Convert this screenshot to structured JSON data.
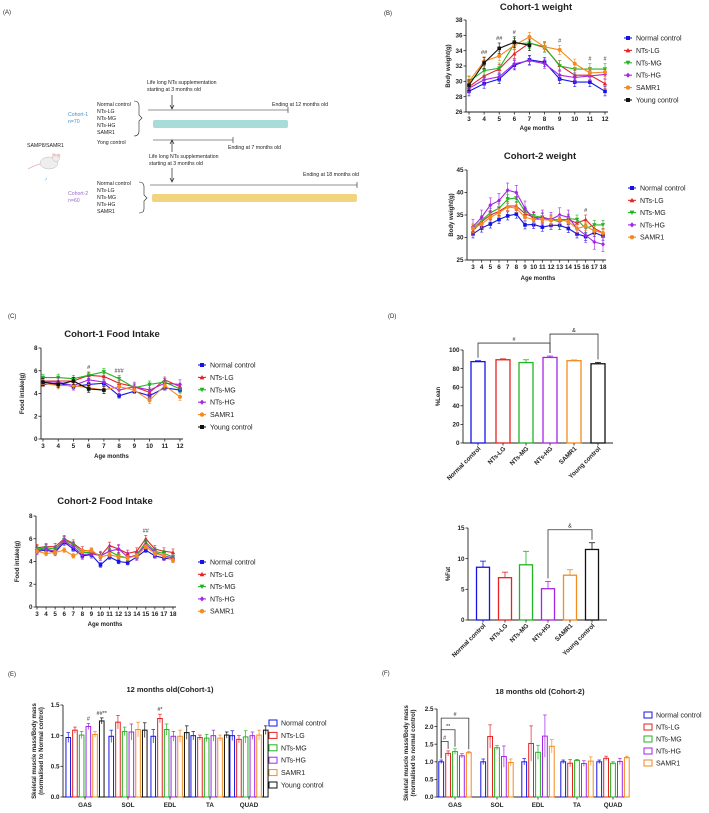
{
  "panels": [
    "(A)",
    "(B)",
    "(C)",
    "(D)",
    "(E)",
    "(F)"
  ],
  "colors": {
    "blue": "#1414e6",
    "red": "#e62222",
    "green": "#22b422",
    "purple": "#a626e6",
    "orange": "#f58a1f",
    "black": "#111111",
    "teal": "#a8dcd8",
    "tan": "#f2d37e",
    "cohort1": "#4a90c8",
    "cohort2": "#9a6ac8"
  },
  "diagram": {
    "supp_text_1": "Life long NTs supplementation",
    "supp_text_2": "starting at 3 months old",
    "cohort1_name": "Cohort-1",
    "cohort1_n": "n=70",
    "cohort2_name": "Cohort-2",
    "cohort2_n": "n=60",
    "groups": [
      "Normal control",
      "NTs-LG",
      "NTs-MG",
      "NTs-HG",
      "SAMR1"
    ],
    "young_control": "Yong control",
    "strain": "SAMP8/SAMR1",
    "male_symbol": "♂",
    "end_12": "Ending at 12 months old",
    "end_7": "Ending at 7 months old",
    "end_18": "Ending at 18 months old"
  },
  "chart_data": [
    {
      "type": "line",
      "title": "Cohort-1 weight",
      "xlabel": "Age months",
      "ylabel": "Body weight(g)",
      "x": [
        3,
        4,
        5,
        6,
        7,
        8,
        9,
        10,
        11,
        12
      ],
      "ylim": [
        26,
        38
      ],
      "yticks": [
        "26",
        "28",
        "30",
        "32",
        "34",
        "36",
        "38"
      ],
      "grid": false,
      "legend": "right",
      "series": [
        {
          "name": "Normal control",
          "color": "blue",
          "marker": "square",
          "error": 0.6,
          "values": [
            28.7,
            29.7,
            30.3,
            32.1,
            32.8,
            32.5,
            30.3,
            29.9,
            29.9,
            28.7
          ]
        },
        {
          "name": "NTs-LG",
          "color": "red",
          "marker": "triangle",
          "error": 0.6,
          "values": [
            29.3,
            30.7,
            31.6,
            33.6,
            35.0,
            34.4,
            32.1,
            30.8,
            30.8,
            29.7
          ]
        },
        {
          "name": "NTs-MG",
          "color": "green",
          "marker": "triangle-down",
          "error": 0.7,
          "values": [
            30.0,
            31.4,
            31.7,
            34.9,
            35.0,
            34.5,
            32.0,
            31.6,
            31.6,
            31.6
          ]
        },
        {
          "name": "NTs-HG",
          "color": "purple",
          "marker": "diamond",
          "error": 0.6,
          "values": [
            29.1,
            30.2,
            30.6,
            32.3,
            32.7,
            32.3,
            30.8,
            30.5,
            30.7,
            30.9
          ]
        },
        {
          "name": "SAMR1",
          "color": "orange",
          "marker": "circle",
          "error": 0.6,
          "values": [
            30.0,
            32.6,
            33.3,
            34.7,
            35.8,
            34.5,
            34.1,
            32.3,
            31.1,
            31.2
          ]
        },
        {
          "name": "Young control",
          "color": "black",
          "marker": "square",
          "error": 0.7,
          "values": [
            29.5,
            32.4,
            34.3,
            35.1,
            34.7,
            null,
            null,
            null,
            null,
            null
          ]
        }
      ],
      "annotations": [
        {
          "x": 4,
          "label": "##"
        },
        {
          "x": 5,
          "label": "##"
        },
        {
          "x": 6,
          "label": "#"
        },
        {
          "x": 9,
          "label": "#"
        },
        {
          "x": 11,
          "label": "#"
        },
        {
          "x": 12,
          "label": "#"
        }
      ]
    },
    {
      "type": "line",
      "title": "Cohort-2 weight",
      "xlabel": "Age months",
      "ylabel": "Body weight(g)",
      "x": [
        3,
        4,
        5,
        6,
        7,
        8,
        9,
        10,
        11,
        12,
        13,
        14,
        15,
        16,
        17,
        18
      ],
      "ylim": [
        25,
        45
      ],
      "yticks": [
        "25",
        "30",
        "35",
        "40",
        "45"
      ],
      "grid": false,
      "legend": "right",
      "series": [
        {
          "name": "Normal control",
          "color": "blue",
          "marker": "square",
          "error": 0.9,
          "values": [
            30.8,
            32.1,
            33.0,
            34.0,
            34.8,
            35.2,
            32.8,
            32.9,
            32.3,
            32.7,
            32.7,
            32.0,
            30.8,
            30.2,
            31.1,
            30.3
          ]
        },
        {
          "name": "NTs-LG",
          "color": "red",
          "marker": "triangle",
          "error": 1.0,
          "values": [
            31.5,
            33.5,
            35.0,
            35.8,
            37.0,
            37.0,
            35.3,
            34.5,
            34.3,
            34.0,
            34.0,
            34.0,
            33.2,
            34.0,
            32.0,
            31.0
          ]
        },
        {
          "name": "NTs-MG",
          "color": "green",
          "marker": "triangle-down",
          "error": 1.0,
          "values": [
            32.0,
            33.8,
            35.5,
            36.5,
            38.5,
            38.8,
            35.8,
            34.8,
            34.5,
            34.0,
            33.5,
            34.2,
            34.0,
            32.0,
            32.8,
            32.8
          ]
        },
        {
          "name": "NTs-HG",
          "color": "purple",
          "marker": "diamond",
          "error": 1.6,
          "values": [
            32.4,
            34.5,
            37.2,
            38.2,
            40.5,
            40.0,
            36.5,
            34.0,
            34.5,
            34.0,
            35.0,
            34.5,
            32.0,
            30.5,
            29.0,
            28.5
          ]
        },
        {
          "name": "SAMR1",
          "color": "orange",
          "marker": "circle",
          "error": 0.9,
          "values": [
            32.0,
            33.0,
            34.5,
            35.5,
            36.8,
            36.5,
            34.5,
            34.0,
            34.0,
            33.8,
            34.0,
            33.5,
            32.0,
            32.5,
            31.5,
            31.0
          ]
        }
      ],
      "annotations": [
        {
          "x": 16,
          "label": "#"
        }
      ]
    },
    {
      "type": "line",
      "title": "Cohort-1 Food Intake",
      "xlabel": "Age months",
      "ylabel": "Food intake(g)",
      "x": [
        3,
        4,
        5,
        6,
        7,
        8,
        9,
        10,
        11,
        12
      ],
      "ylim": [
        0,
        8
      ],
      "yticks": [
        "0",
        "2",
        "4",
        "6",
        "8"
      ],
      "grid": false,
      "legend": "right",
      "series": [
        {
          "name": "Normal control",
          "color": "blue",
          "marker": "square",
          "error": 0.2,
          "values": [
            4.8,
            4.9,
            4.6,
            4.8,
            4.9,
            3.8,
            4.2,
            3.8,
            4.5,
            4.3
          ]
        },
        {
          "name": "NTs-LG",
          "color": "red",
          "marker": "triangle",
          "error": 0.25,
          "values": [
            5.1,
            5.1,
            5.1,
            5.6,
            5.5,
            4.9,
            4.6,
            4.1,
            5.2,
            4.6
          ]
        },
        {
          "name": "NTs-MG",
          "color": "green",
          "marker": "triangle-down",
          "error": 0.3,
          "values": [
            5.4,
            5.4,
            5.3,
            5.6,
            5.9,
            5.3,
            4.5,
            4.8,
            5.0,
            4.4
          ]
        },
        {
          "name": "NTs-HG",
          "color": "purple",
          "marker": "diamond",
          "error": 0.4,
          "values": [
            5.0,
            5.0,
            4.7,
            5.2,
            5.0,
            4.3,
            4.6,
            4.3,
            4.9,
            4.8
          ]
        },
        {
          "name": "SAMR1",
          "color": "orange",
          "marker": "circle",
          "error": 0.3,
          "values": [
            4.9,
            4.7,
            4.7,
            4.5,
            4.3,
            4.6,
            4.3,
            3.4,
            4.7,
            3.7
          ]
        },
        {
          "name": "Young control",
          "color": "black",
          "marker": "square",
          "error": 0.3,
          "values": [
            5.0,
            4.8,
            5.1,
            4.4,
            4.3,
            null,
            null,
            null,
            null,
            null
          ]
        }
      ],
      "annotations": [
        {
          "x": 6,
          "label": "#"
        },
        {
          "x": 8,
          "label": "###"
        }
      ]
    },
    {
      "type": "line",
      "title": "Cohort-2 Food Intake",
      "xlabel": "Age months",
      "ylabel": "Food intake(g)",
      "x": [
        3,
        4,
        5,
        6,
        7,
        8,
        9,
        10,
        11,
        12,
        13,
        14,
        15,
        16,
        17,
        18
      ],
      "ylim": [
        0,
        8
      ],
      "yticks": [
        "0",
        "2",
        "4",
        "6",
        "8"
      ],
      "grid": false,
      "legend": "right",
      "series": [
        {
          "name": "Normal control",
          "color": "blue",
          "marker": "square",
          "error": 0.2,
          "values": [
            4.9,
            5.0,
            4.8,
            5.7,
            5.1,
            4.5,
            4.6,
            3.7,
            4.4,
            4.0,
            3.9,
            4.4,
            5.0,
            4.5,
            4.3,
            4.2
          ]
        },
        {
          "name": "NTs-LG",
          "color": "red",
          "marker": "triangle",
          "error": 0.3,
          "values": [
            5.2,
            5.3,
            5.3,
            6.0,
            5.6,
            5.0,
            4.9,
            4.5,
            5.4,
            5.1,
            4.7,
            4.9,
            6.0,
            5.1,
            4.9,
            4.8
          ]
        },
        {
          "name": "NTs-MG",
          "color": "green",
          "marker": "triangle-down",
          "error": 0.25,
          "values": [
            5.1,
            5.2,
            5.1,
            5.9,
            5.5,
            4.8,
            4.8,
            4.5,
            4.9,
            4.5,
            4.3,
            4.6,
            5.7,
            4.9,
            4.7,
            4.4
          ]
        },
        {
          "name": "NTs-HG",
          "color": "purple",
          "marker": "diamond",
          "error": 0.4,
          "values": [
            5.0,
            5.1,
            4.9,
            5.8,
            5.3,
            4.6,
            4.7,
            4.5,
            4.9,
            5.1,
            4.4,
            4.5,
            5.5,
            4.8,
            4.5,
            4.3
          ]
        },
        {
          "name": "SAMR1",
          "color": "orange",
          "marker": "circle",
          "error": 0.2,
          "values": [
            4.9,
            4.7,
            4.8,
            5.0,
            4.5,
            4.9,
            5.0,
            4.4,
            4.6,
            4.4,
            4.3,
            4.5,
            5.3,
            4.7,
            4.5,
            4.1
          ]
        }
      ],
      "annotations": [
        {
          "x": 15,
          "label": "##"
        }
      ]
    },
    {
      "type": "bar",
      "title": "",
      "xlabel": "",
      "ylabel": "%Lean",
      "categories": [
        "Normal control",
        "NTs-LG",
        "NTs-MG",
        "NTs-HG",
        "SAMR1",
        "Young control"
      ],
      "colors": [
        "blue",
        "red",
        "green",
        "purple",
        "orange",
        "black"
      ],
      "values": [
        87.5,
        89.5,
        86.5,
        92.0,
        88.5,
        85.2
      ],
      "errors": [
        1.0,
        1.0,
        3.0,
        1.5,
        0.8,
        1.5
      ],
      "ylim": [
        0,
        100
      ],
      "yticks": [
        "0",
        "20",
        "40",
        "60",
        "80",
        "100"
      ],
      "brackets": [
        {
          "from": 0,
          "to": 3,
          "label": "#",
          "level": 1
        },
        {
          "from": 3,
          "to": 5,
          "label": "&",
          "level": 2
        }
      ]
    },
    {
      "type": "bar",
      "title": "",
      "xlabel": "",
      "ylabel": "%Fat",
      "categories": [
        "Normal control",
        "NTs-LG",
        "NTs-MG",
        "NTs-HG",
        "SAMR1",
        "Young control"
      ],
      "colors": [
        "blue",
        "red",
        "green",
        "purple",
        "orange",
        "black"
      ],
      "values": [
        8.6,
        6.9,
        9.0,
        5.1,
        7.3,
        11.5
      ],
      "errors": [
        1.0,
        0.9,
        2.2,
        1.2,
        0.9,
        1.1
      ],
      "ylim": [
        0,
        15
      ],
      "yticks": [
        "0",
        "5",
        "10",
        "15"
      ],
      "brackets": [
        {
          "from": 3,
          "to": 5,
          "label": "&",
          "level": 1
        }
      ]
    },
    {
      "type": "bar",
      "title": "12 months old(Cohort-1)",
      "xlabel": "",
      "ylabel": "Skeletal muscle mass/Body mass",
      "ylabel2": "(normalised to Normal control)",
      "categories": [
        "GAS",
        "SOL",
        "EDL",
        "TA",
        "QUAD"
      ],
      "ylim": [
        0,
        1.5
      ],
      "yticks": [
        "0.0",
        "0.5",
        "1.0",
        "1.5"
      ],
      "legend": "right",
      "series": [
        {
          "name": "Normal control",
          "color": "blue",
          "values": [
            0.97,
            0.99,
            0.99,
            1.0,
            1.0
          ],
          "errors": [
            0.08,
            0.1,
            0.11,
            0.07,
            0.08
          ]
        },
        {
          "name": "NTs-LG",
          "color": "red",
          "values": [
            1.09,
            1.22,
            1.28,
            0.97,
            0.94
          ],
          "errors": [
            0.05,
            0.11,
            0.07,
            0.04,
            0.06
          ]
        },
        {
          "name": "NTs-MG",
          "color": "green",
          "values": [
            1.01,
            1.07,
            1.1,
            0.96,
            0.98
          ],
          "errors": [
            0.06,
            0.07,
            0.09,
            0.06,
            0.1
          ]
        },
        {
          "name": "NTs-HG",
          "color": "purple",
          "values": [
            1.15,
            1.06,
            0.99,
            1.0,
            1.0
          ],
          "errors": [
            0.05,
            0.13,
            0.08,
            0.09,
            0.06
          ]
        },
        {
          "name": "SAMR1",
          "color": "orange",
          "values": [
            1.02,
            1.1,
            0.99,
            0.96,
            1.01
          ],
          "errors": [
            0.05,
            0.12,
            0.1,
            0.05,
            0.08
          ]
        },
        {
          "name": "Young control",
          "color": "black",
          "values": [
            1.24,
            1.09,
            1.05,
            1.01,
            1.09
          ],
          "errors": [
            0.05,
            0.12,
            0.11,
            0.05,
            0.07
          ]
        }
      ],
      "annotations": [
        {
          "group": 0,
          "series": 3,
          "label": "#"
        },
        {
          "group": 0,
          "series": 5,
          "label": "##**"
        },
        {
          "group": 2,
          "series": 1,
          "label": "#*"
        }
      ]
    },
    {
      "type": "bar",
      "title": "18 months old (Cohort-2)",
      "xlabel": "",
      "ylabel": "Skeletal muscle mass/Body mass",
      "ylabel2": "(normalised to normal control)",
      "categories": [
        "GAS",
        "SOL",
        "EDL",
        "TA",
        "QUAD"
      ],
      "ylim": [
        0,
        2.5
      ],
      "yticks": [
        "0.0",
        "0.5",
        "1.0",
        "1.5",
        "2.0",
        "2.5"
      ],
      "legend": "right",
      "series": [
        {
          "name": "Normal control",
          "color": "blue",
          "values": [
            1.0,
            1.0,
            1.0,
            1.0,
            1.0
          ],
          "errors": [
            0.05,
            0.08,
            0.09,
            0.05,
            0.05
          ]
        },
        {
          "name": "NTs-LG",
          "color": "red",
          "values": [
            1.24,
            1.72,
            1.52,
            0.96,
            1.1
          ],
          "errors": [
            0.07,
            0.33,
            0.5,
            0.1,
            0.06
          ]
        },
        {
          "name": "NTs-MG",
          "color": "green",
          "values": [
            1.29,
            1.4,
            1.27,
            1.04,
            0.96
          ],
          "errors": [
            0.08,
            0.06,
            0.2,
            0.03,
            0.04
          ]
        },
        {
          "name": "NTs-HG",
          "color": "purple",
          "values": [
            1.17,
            1.15,
            1.73,
            0.95,
            1.01
          ],
          "errors": [
            0.06,
            0.3,
            0.6,
            0.08,
            0.09
          ]
        },
        {
          "name": "SAMR1",
          "color": "orange",
          "values": [
            1.26,
            0.98,
            1.44,
            1.02,
            1.12
          ],
          "errors": [
            0.04,
            0.1,
            0.19,
            0.12,
            0.04
          ]
        }
      ],
      "brackets": [
        {
          "group": 0,
          "from": 0,
          "to": 1,
          "label": "#",
          "level": 1
        },
        {
          "group": 0,
          "from": 0,
          "to": 2,
          "label": "**",
          "level": 2
        },
        {
          "group": 0,
          "from": 0,
          "to": 4,
          "label": "#",
          "level": 3
        }
      ]
    }
  ]
}
